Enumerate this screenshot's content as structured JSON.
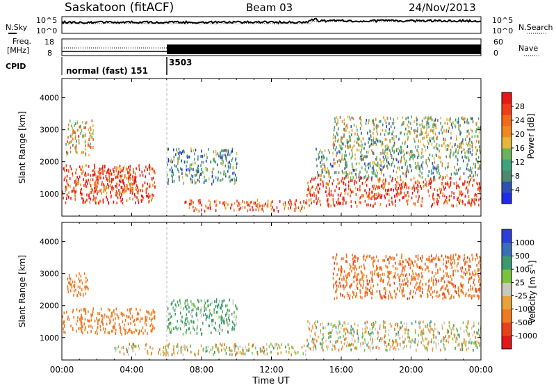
{
  "header": {
    "station": "Saskatoon (fitACF)",
    "beam": "Beam 03",
    "date": "24/Nov/2013"
  },
  "noise_panel": {
    "left_label": "N.Sky",
    "right_label": "N.Search",
    "left_ticks": [
      "10^5",
      "10^0"
    ],
    "right_ticks": [
      "10^5",
      "10^0"
    ]
  },
  "freq_panel": {
    "left_label_line1": "Freq.",
    "left_label_line2": "[MHz]",
    "left_ticks": [
      "18",
      "8"
    ],
    "right_label": "Nave",
    "right_ticks": [
      "60",
      "0"
    ]
  },
  "cpid_panel": {
    "label": "CPID",
    "segments": [
      {
        "start": "00:00",
        "end": "06:00",
        "text": "normal (fast) 151"
      },
      {
        "start": "06:00",
        "end": "24:00",
        "text": "3503"
      }
    ]
  },
  "x_axis": {
    "title": "Time UT",
    "ticks": [
      "00:00",
      "04:00",
      "08:00",
      "12:00",
      "16:00",
      "20:00",
      "00:00"
    ]
  },
  "power_panel": {
    "ylabel": "Slant Range [km]",
    "yticks": [
      "1000",
      "2000",
      "3000",
      "4000"
    ],
    "colorbar_label": "Power [dB]",
    "colorbar_ticks": [
      "4",
      "8",
      "12",
      "16",
      "20",
      "24",
      "28"
    ],
    "colors": [
      "#1e2de6",
      "#2e4fb4",
      "#4c8a70",
      "#3fa27f",
      "#6ab35a",
      "#e6b73d",
      "#f08a20",
      "#f26a1a",
      "#ef3d16",
      "#e81818"
    ]
  },
  "velocity_panel": {
    "ylabel": "Slant Range [km]",
    "yticks": [
      "1000",
      "2000",
      "3000",
      "4000"
    ],
    "colorbar_label": "Velocity [m s-1]",
    "colorbar_ticks": [
      "1000",
      "500",
      "100",
      "25",
      "-25",
      "-100",
      "-500",
      "-1000"
    ],
    "colors": [
      "#2a3fd8",
      "#3a6fb8",
      "#3c9a70",
      "#7ac43c",
      "#c8c8c2",
      "#e8a23a",
      "#f07a20",
      "#e8401c",
      "#e01818"
    ]
  },
  "chart_data": [
    {
      "type": "heatmap",
      "title": "Power",
      "xlabel": "Time UT",
      "ylabel": "Slant Range [km]",
      "xlim": [
        0,
        24
      ],
      "ylim": [
        300,
        4600
      ],
      "colorbar": {
        "label": "Power [dB]",
        "range": [
          0,
          32
        ]
      },
      "regions": [
        {
          "t0": 0.0,
          "t1": 5.3,
          "r0": 700,
          "r1": 1900,
          "power_db": 28
        },
        {
          "t0": 0.2,
          "t1": 1.8,
          "r0": 2200,
          "r1": 3300,
          "power_db": 18
        },
        {
          "t0": 1.8,
          "t1": 4.2,
          "r0": 1000,
          "r1": 1800,
          "power_db": 26
        },
        {
          "t0": 6.0,
          "t1": 10.0,
          "r0": 1300,
          "r1": 2400,
          "power_db": 10
        },
        {
          "t0": 7.0,
          "t1": 14.0,
          "r0": 450,
          "r1": 800,
          "power_db": 26
        },
        {
          "t0": 14.0,
          "t1": 24.0,
          "r0": 600,
          "r1": 1500,
          "power_db": 28
        },
        {
          "t0": 14.5,
          "t1": 24.0,
          "r0": 1500,
          "r1": 2400,
          "power_db": 12
        },
        {
          "t0": 15.5,
          "t1": 24.0,
          "r0": 2400,
          "r1": 3400,
          "power_db": 14
        }
      ]
    },
    {
      "type": "heatmap",
      "title": "Velocity",
      "xlabel": "Time UT",
      "ylabel": "Slant Range [km]",
      "xlim": [
        0,
        24
      ],
      "ylim": [
        300,
        4600
      ],
      "colorbar": {
        "label": "Velocity [m s-1]",
        "range": [
          -1000,
          1000
        ]
      },
      "regions": [
        {
          "t0": 0.0,
          "t1": 5.3,
          "r0": 1100,
          "r1": 1900,
          "velocity": -150
        },
        {
          "t0": 0.2,
          "t1": 1.5,
          "r0": 2300,
          "r1": 3000,
          "velocity": -200
        },
        {
          "t0": 6.0,
          "t1": 10.0,
          "r0": 1100,
          "r1": 2200,
          "velocity": 80
        },
        {
          "t0": 3.0,
          "t1": 14.0,
          "r0": 450,
          "r1": 800,
          "velocity": -10
        },
        {
          "t0": 14.0,
          "t1": 24.0,
          "r0": 600,
          "r1": 1500,
          "velocity": 0
        },
        {
          "t0": 15.5,
          "t1": 24.0,
          "r0": 2200,
          "r1": 3600,
          "velocity": -250
        }
      ]
    }
  ]
}
